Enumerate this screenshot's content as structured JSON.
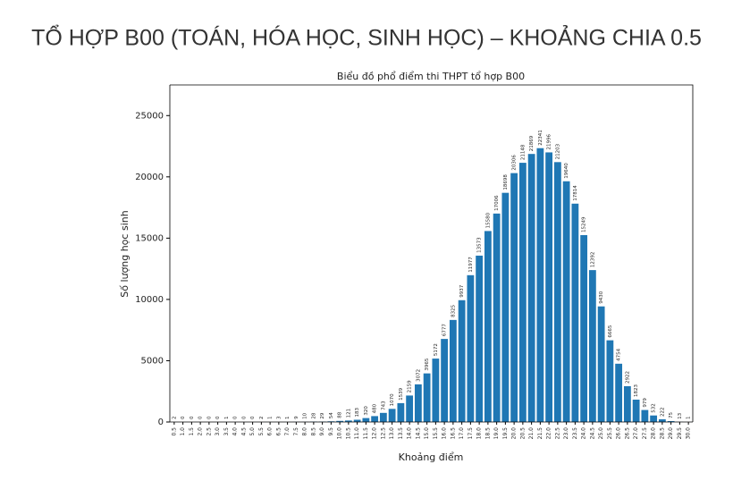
{
  "slide_title": "TỔ HỢP B00 (TOÁN, HÓA HỌC, SINH HỌC) – KHOẢNG CHIA 0.5",
  "chart_data": {
    "type": "bar",
    "title": "Biểu đồ phổ điểm thi THPT tổ hợp B00",
    "x_label": "Khoảng điểm",
    "y_label": "Số lượng học sinh",
    "categories": [
      "0.5",
      "1.0",
      "1.5",
      "2.0",
      "2.5",
      "3.0",
      "3.5",
      "4.0",
      "4.5",
      "5.0",
      "5.5",
      "6.0",
      "6.5",
      "7.0",
      "7.5",
      "8.0",
      "8.5",
      "9.0",
      "9.5",
      "10.0",
      "10.5",
      "11.0",
      "11.5",
      "12.0",
      "12.5",
      "13.0",
      "13.5",
      "14.0",
      "14.5",
      "15.0",
      "15.5",
      "16.0",
      "16.5",
      "17.0",
      "17.5",
      "18.0",
      "18.5",
      "19.0",
      "19.5",
      "20.0",
      "20.5",
      "21.0",
      "21.5",
      "22.0",
      "22.5",
      "23.0",
      "23.5",
      "24.0",
      "24.5",
      "25.0",
      "25.5",
      "26.0",
      "26.5",
      "27.0",
      "27.5",
      "28.0",
      "28.5",
      "29.0",
      "29.5",
      "30.0"
    ],
    "values": [
      2,
      0,
      0,
      0,
      0,
      0,
      1,
      0,
      0,
      0,
      2,
      1,
      3,
      1,
      9,
      10,
      28,
      29,
      54,
      88,
      121,
      183,
      320,
      480,
      743,
      1070,
      1539,
      2159,
      3072,
      3965,
      5172,
      6777,
      8325,
      9937,
      11977,
      13573,
      15580,
      17006,
      18698,
      20306,
      21148,
      21869,
      22341,
      21996,
      21203,
      19640,
      17814,
      15249,
      12392,
      9430,
      6665,
      4754,
      2922,
      1823,
      979,
      532,
      222,
      75,
      13,
      1
    ],
    "color": "#1f77b4",
    "ylim": [
      0,
      27500
    ],
    "yticks": [
      0,
      5000,
      10000,
      15000,
      20000,
      25000
    ]
  }
}
